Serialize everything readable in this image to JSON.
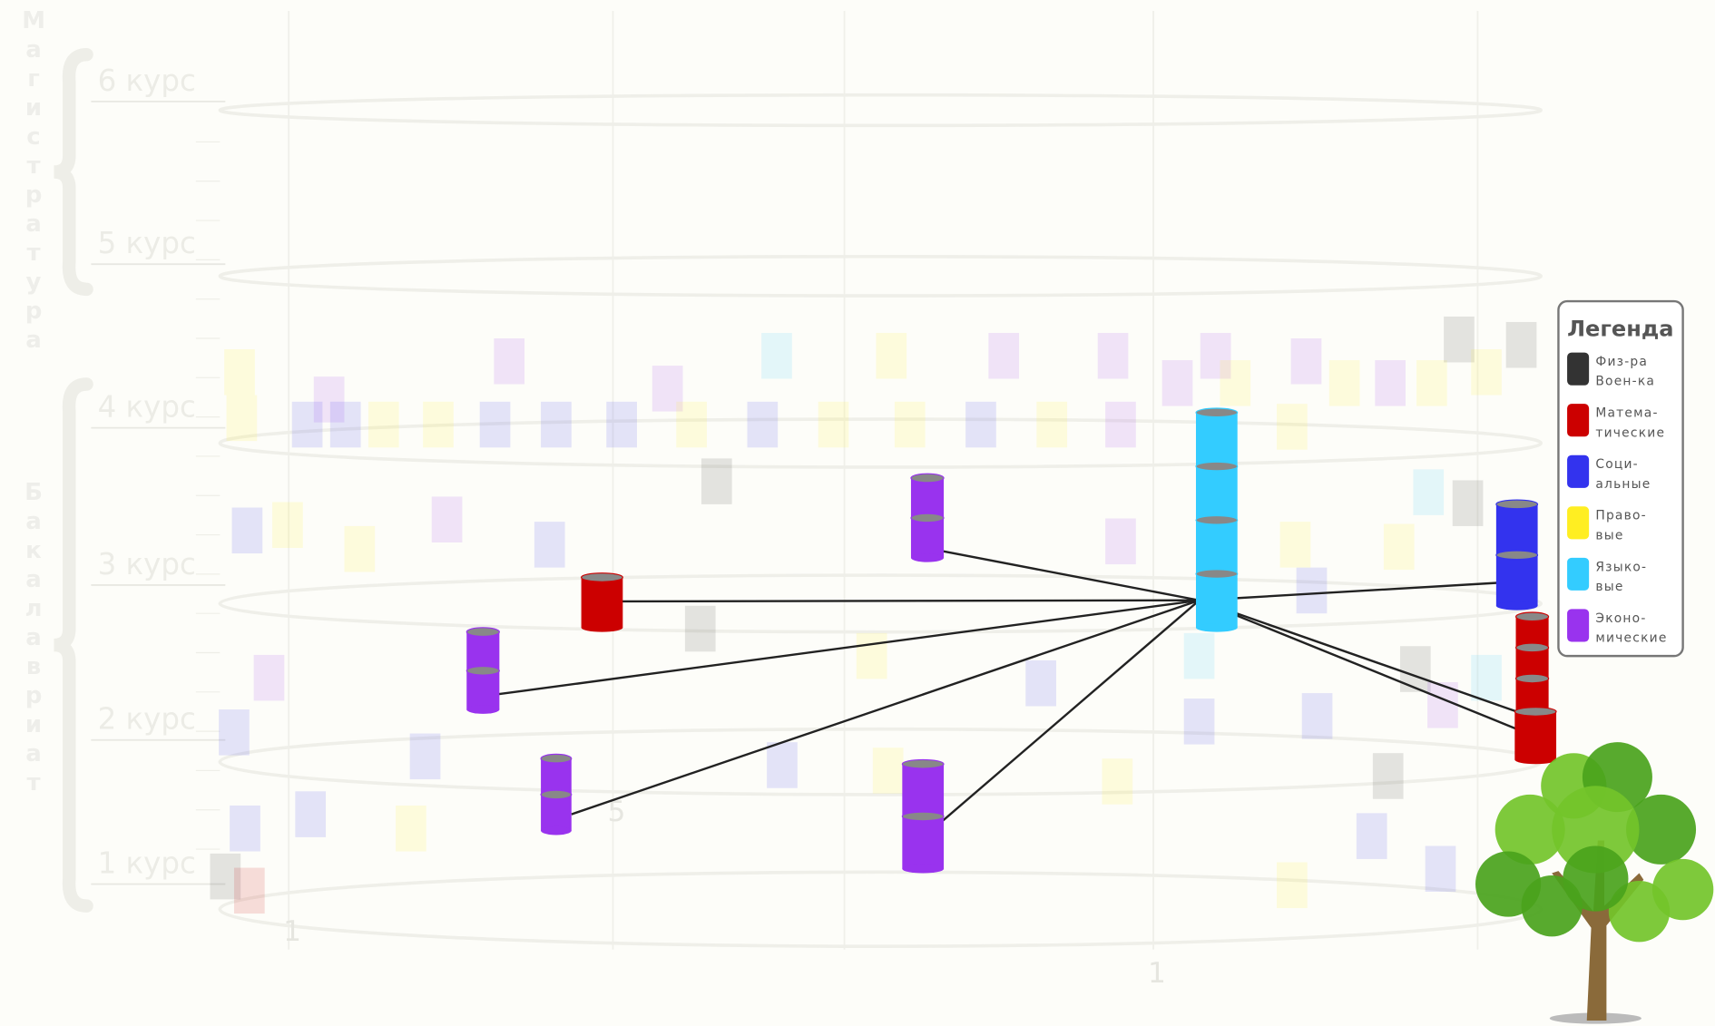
{
  "courses": [
    "6 курс",
    "5 курс",
    "4 курс",
    "3 курс",
    "2 курс",
    "1 курс"
  ],
  "programs": [
    "Магистратура",
    "Бакалавриат"
  ],
  "axis_labels": [
    "1",
    "5",
    "1"
  ],
  "legend": {
    "title": "Легенда",
    "items": [
      {
        "lines": [
          "Физ-ра",
          "Воен-ка"
        ],
        "color": "#333333"
      },
      {
        "lines": [
          "Матема-",
          "тическиe"
        ],
        "color": "#cc0000"
      },
      {
        "lines": [
          "Соци-",
          "альные"
        ],
        "color": "#3333ee"
      },
      {
        "lines": [
          "Право-",
          "вые"
        ],
        "color": "#ffee22"
      },
      {
        "lines": [
          "Языко-",
          "вые"
        ],
        "color": "#33ccff"
      },
      {
        "lines": [
          "Эконо-",
          "мические"
        ],
        "color": "#9933ee"
      }
    ]
  }
}
